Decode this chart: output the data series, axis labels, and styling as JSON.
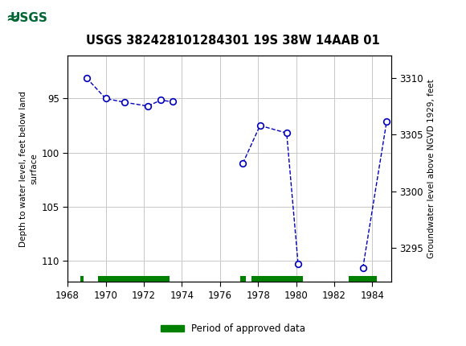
{
  "title": "USGS 382428101284301 19S 38W 14AAB 01",
  "ylabel_left": "Depth to water level, feet below land\nsurface",
  "ylabel_right": "Groundwater level above NGVD 1929, feet",
  "segments": [
    {
      "x": [
        1969.0,
        1970.0,
        1971.0,
        1972.2,
        1972.9,
        1973.5
      ],
      "y": [
        93.1,
        95.0,
        95.35,
        95.7,
        95.15,
        95.3
      ]
    },
    {
      "x": [
        1977.2,
        1978.1,
        1979.5,
        1980.1
      ],
      "y": [
        101.0,
        97.5,
        98.2,
        110.3
      ]
    },
    {
      "x": [
        1983.5,
        1984.75
      ],
      "y": [
        110.7,
        97.1
      ]
    }
  ],
  "xlim": [
    1968,
    1985
  ],
  "ylim": [
    112,
    91
  ],
  "yticks_left": [
    95,
    100,
    105,
    110
  ],
  "yticks_right": [
    3295,
    3300,
    3305,
    3310
  ],
  "right_axis_top": 3312.0,
  "right_axis_bottom": 3292.0,
  "xticks": [
    1968,
    1970,
    1972,
    1974,
    1976,
    1978,
    1980,
    1982,
    1984
  ],
  "line_color": "#0000bb",
  "grid_color": "#c8c8c8",
  "header_color": "#006633",
  "green_color": "#008000",
  "green_bars": [
    [
      1968.65,
      1968.85
    ],
    [
      1969.6,
      1973.35
    ],
    [
      1977.05,
      1977.35
    ],
    [
      1977.65,
      1980.35
    ],
    [
      1982.75,
      1984.25
    ]
  ],
  "legend_label": "Period of approved data",
  "fig_width": 5.8,
  "fig_height": 4.3,
  "dpi": 100
}
